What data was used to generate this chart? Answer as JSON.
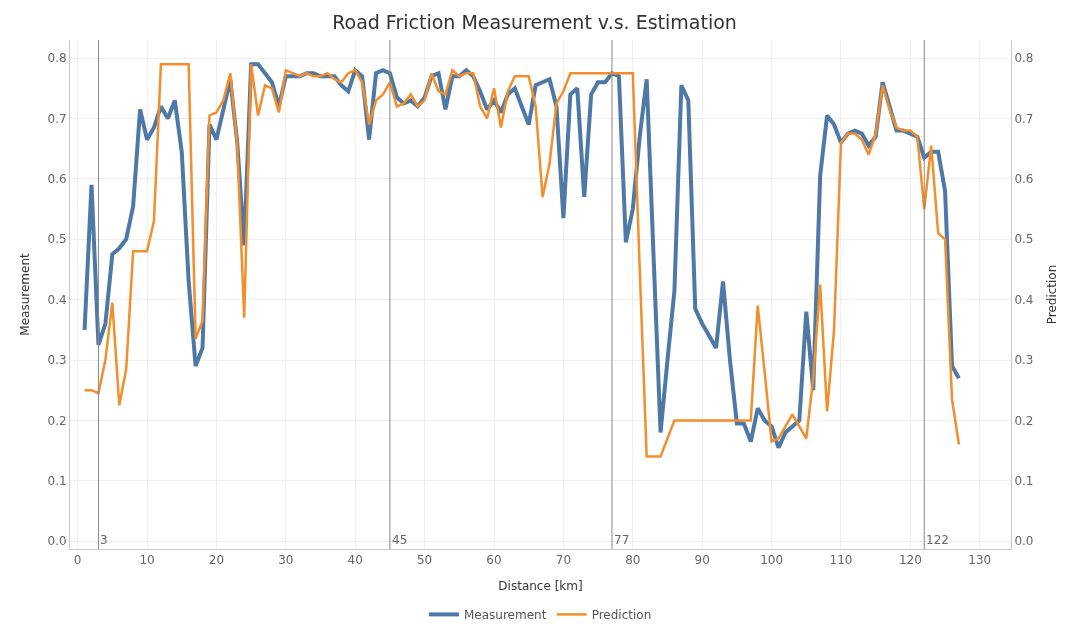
{
  "chart_data": {
    "type": "line",
    "title": "Road Friction Measurement v.s. Estimation",
    "xlabel": "Distance [km]",
    "ylabel": "Measurement",
    "y2label": "Prediction",
    "x": [
      1,
      2,
      3,
      4,
      5,
      6,
      7,
      8,
      9,
      10,
      11,
      12,
      13,
      14,
      15,
      16,
      17,
      18,
      19,
      20,
      21,
      22,
      23,
      24,
      25,
      26,
      27,
      28,
      29,
      30,
      31,
      32,
      33,
      34,
      35,
      36,
      37,
      38,
      39,
      40,
      41,
      42,
      43,
      44,
      45,
      46,
      47,
      48,
      49,
      50,
      51,
      52,
      53,
      54,
      55,
      56,
      57,
      58,
      59,
      60,
      61,
      62,
      63,
      64,
      65,
      66,
      67,
      68,
      69,
      70,
      71,
      72,
      73,
      74,
      75,
      76,
      77,
      78,
      79,
      80,
      81,
      82,
      83,
      84,
      85,
      86,
      87,
      88,
      89,
      90,
      91,
      92,
      93,
      94,
      95,
      96,
      97,
      98,
      99,
      100,
      101,
      102,
      103,
      104,
      105,
      106,
      107,
      108,
      109,
      110,
      111,
      112,
      113,
      114,
      115,
      116,
      117,
      118,
      119,
      120,
      121,
      122,
      123,
      124,
      125,
      126,
      127
    ],
    "series": [
      {
        "name": "Measurement",
        "color": "#4e79a7",
        "values": [
          0.35,
          0.59,
          0.325,
          0.36,
          0.475,
          0.485,
          0.5,
          0.555,
          0.715,
          0.665,
          0.685,
          0.72,
          0.7,
          0.73,
          0.645,
          0.43,
          0.29,
          0.32,
          0.69,
          0.665,
          0.715,
          0.765,
          0.66,
          0.49,
          0.79,
          0.79,
          0.775,
          0.76,
          0.72,
          0.77,
          0.77,
          0.77,
          0.775,
          0.775,
          0.77,
          0.77,
          0.77,
          0.755,
          0.745,
          0.78,
          0.77,
          0.665,
          0.775,
          0.78,
          0.775,
          0.735,
          0.725,
          0.73,
          0.72,
          0.735,
          0.77,
          0.775,
          0.715,
          0.77,
          0.77,
          0.78,
          0.77,
          0.745,
          0.715,
          0.73,
          0.71,
          0.74,
          0.75,
          0.72,
          0.69,
          0.755,
          0.76,
          0.765,
          0.72,
          0.535,
          0.74,
          0.75,
          0.57,
          0.74,
          0.76,
          0.76,
          0.775,
          0.77,
          0.495,
          0.55,
          0.67,
          0.765,
          0.47,
          0.18,
          0.3,
          0.415,
          0.755,
          0.73,
          0.385,
          0.36,
          0.34,
          0.32,
          0.43,
          0.3,
          0.195,
          0.195,
          0.165,
          0.22,
          0.2,
          0.19,
          0.155,
          0.18,
          0.19,
          0.2,
          0.38,
          0.25,
          0.605,
          0.705,
          0.69,
          0.66,
          0.675,
          0.68,
          0.675,
          0.655,
          0.67,
          0.76,
          0.72,
          0.68,
          0.68,
          0.675,
          0.67,
          0.635,
          0.645,
          0.645,
          0.58,
          0.29,
          0.27
        ]
      },
      {
        "name": "Prediction",
        "color": "#f28e2b",
        "axis": "y2",
        "values": [
          0.25,
          0.25,
          0.245,
          0.3,
          0.395,
          0.225,
          0.285,
          0.48,
          0.48,
          0.48,
          0.53,
          0.79,
          0.79,
          0.79,
          0.79,
          0.79,
          0.335,
          0.365,
          0.705,
          0.71,
          0.73,
          0.775,
          0.655,
          0.37,
          0.79,
          0.705,
          0.755,
          0.75,
          0.71,
          0.78,
          0.775,
          0.77,
          0.775,
          0.77,
          0.77,
          0.775,
          0.765,
          0.76,
          0.775,
          0.78,
          0.76,
          0.69,
          0.73,
          0.74,
          0.76,
          0.72,
          0.725,
          0.74,
          0.72,
          0.73,
          0.775,
          0.745,
          0.74,
          0.78,
          0.77,
          0.775,
          0.775,
          0.72,
          0.7,
          0.75,
          0.685,
          0.745,
          0.77,
          0.77,
          0.77,
          0.72,
          0.57,
          0.625,
          0.725,
          0.745,
          0.775,
          0.775,
          0.775,
          0.775,
          0.775,
          0.775,
          0.775,
          0.775,
          0.775,
          0.775,
          0.45,
          0.14,
          0.14,
          0.14,
          0.17,
          0.2,
          0.2,
          0.2,
          0.2,
          0.2,
          0.2,
          0.2,
          0.2,
          0.2,
          0.2,
          0.2,
          0.2,
          0.39,
          0.28,
          0.165,
          0.17,
          0.19,
          0.21,
          0.19,
          0.17,
          0.27,
          0.425,
          0.215,
          0.35,
          0.66,
          0.675,
          0.675,
          0.665,
          0.64,
          0.675,
          0.755,
          0.715,
          0.685,
          0.68,
          0.68,
          0.67,
          0.55,
          0.655,
          0.51,
          0.5,
          0.235,
          0.16
        ]
      }
    ],
    "xlim": [
      -1.1,
      134.5
    ],
    "xticks": [
      0,
      10,
      20,
      30,
      40,
      50,
      60,
      70,
      80,
      90,
      100,
      110,
      120,
      130
    ],
    "ylim": [
      -0.013,
      0.83
    ],
    "yticks": [
      {
        "value": 0,
        "label": "0.0"
      },
      0.1,
      0.2,
      0.3,
      0.4,
      0.5,
      0.6,
      0.7,
      0.8
    ],
    "y2lim": [
      -0.013,
      0.83
    ],
    "y2ticks": [
      {
        "value": 0,
        "label": "0.0"
      },
      0.1,
      0.2,
      0.3,
      0.4,
      0.5,
      0.6,
      0.7,
      0.8
    ],
    "ref_lines": [
      {
        "axis": "x",
        "value": 3,
        "label": "3",
        "color": "#888888"
      },
      {
        "axis": "x",
        "value": 45,
        "label": "45",
        "color": "#888888"
      },
      {
        "axis": "x",
        "value": 77,
        "label": "77",
        "color": "#888888"
      },
      {
        "axis": "x",
        "value": 122,
        "label": "122",
        "color": "#888888"
      }
    ],
    "grid": true,
    "legend": "bottom",
    "marker": "none",
    "line_style": "solid"
  }
}
